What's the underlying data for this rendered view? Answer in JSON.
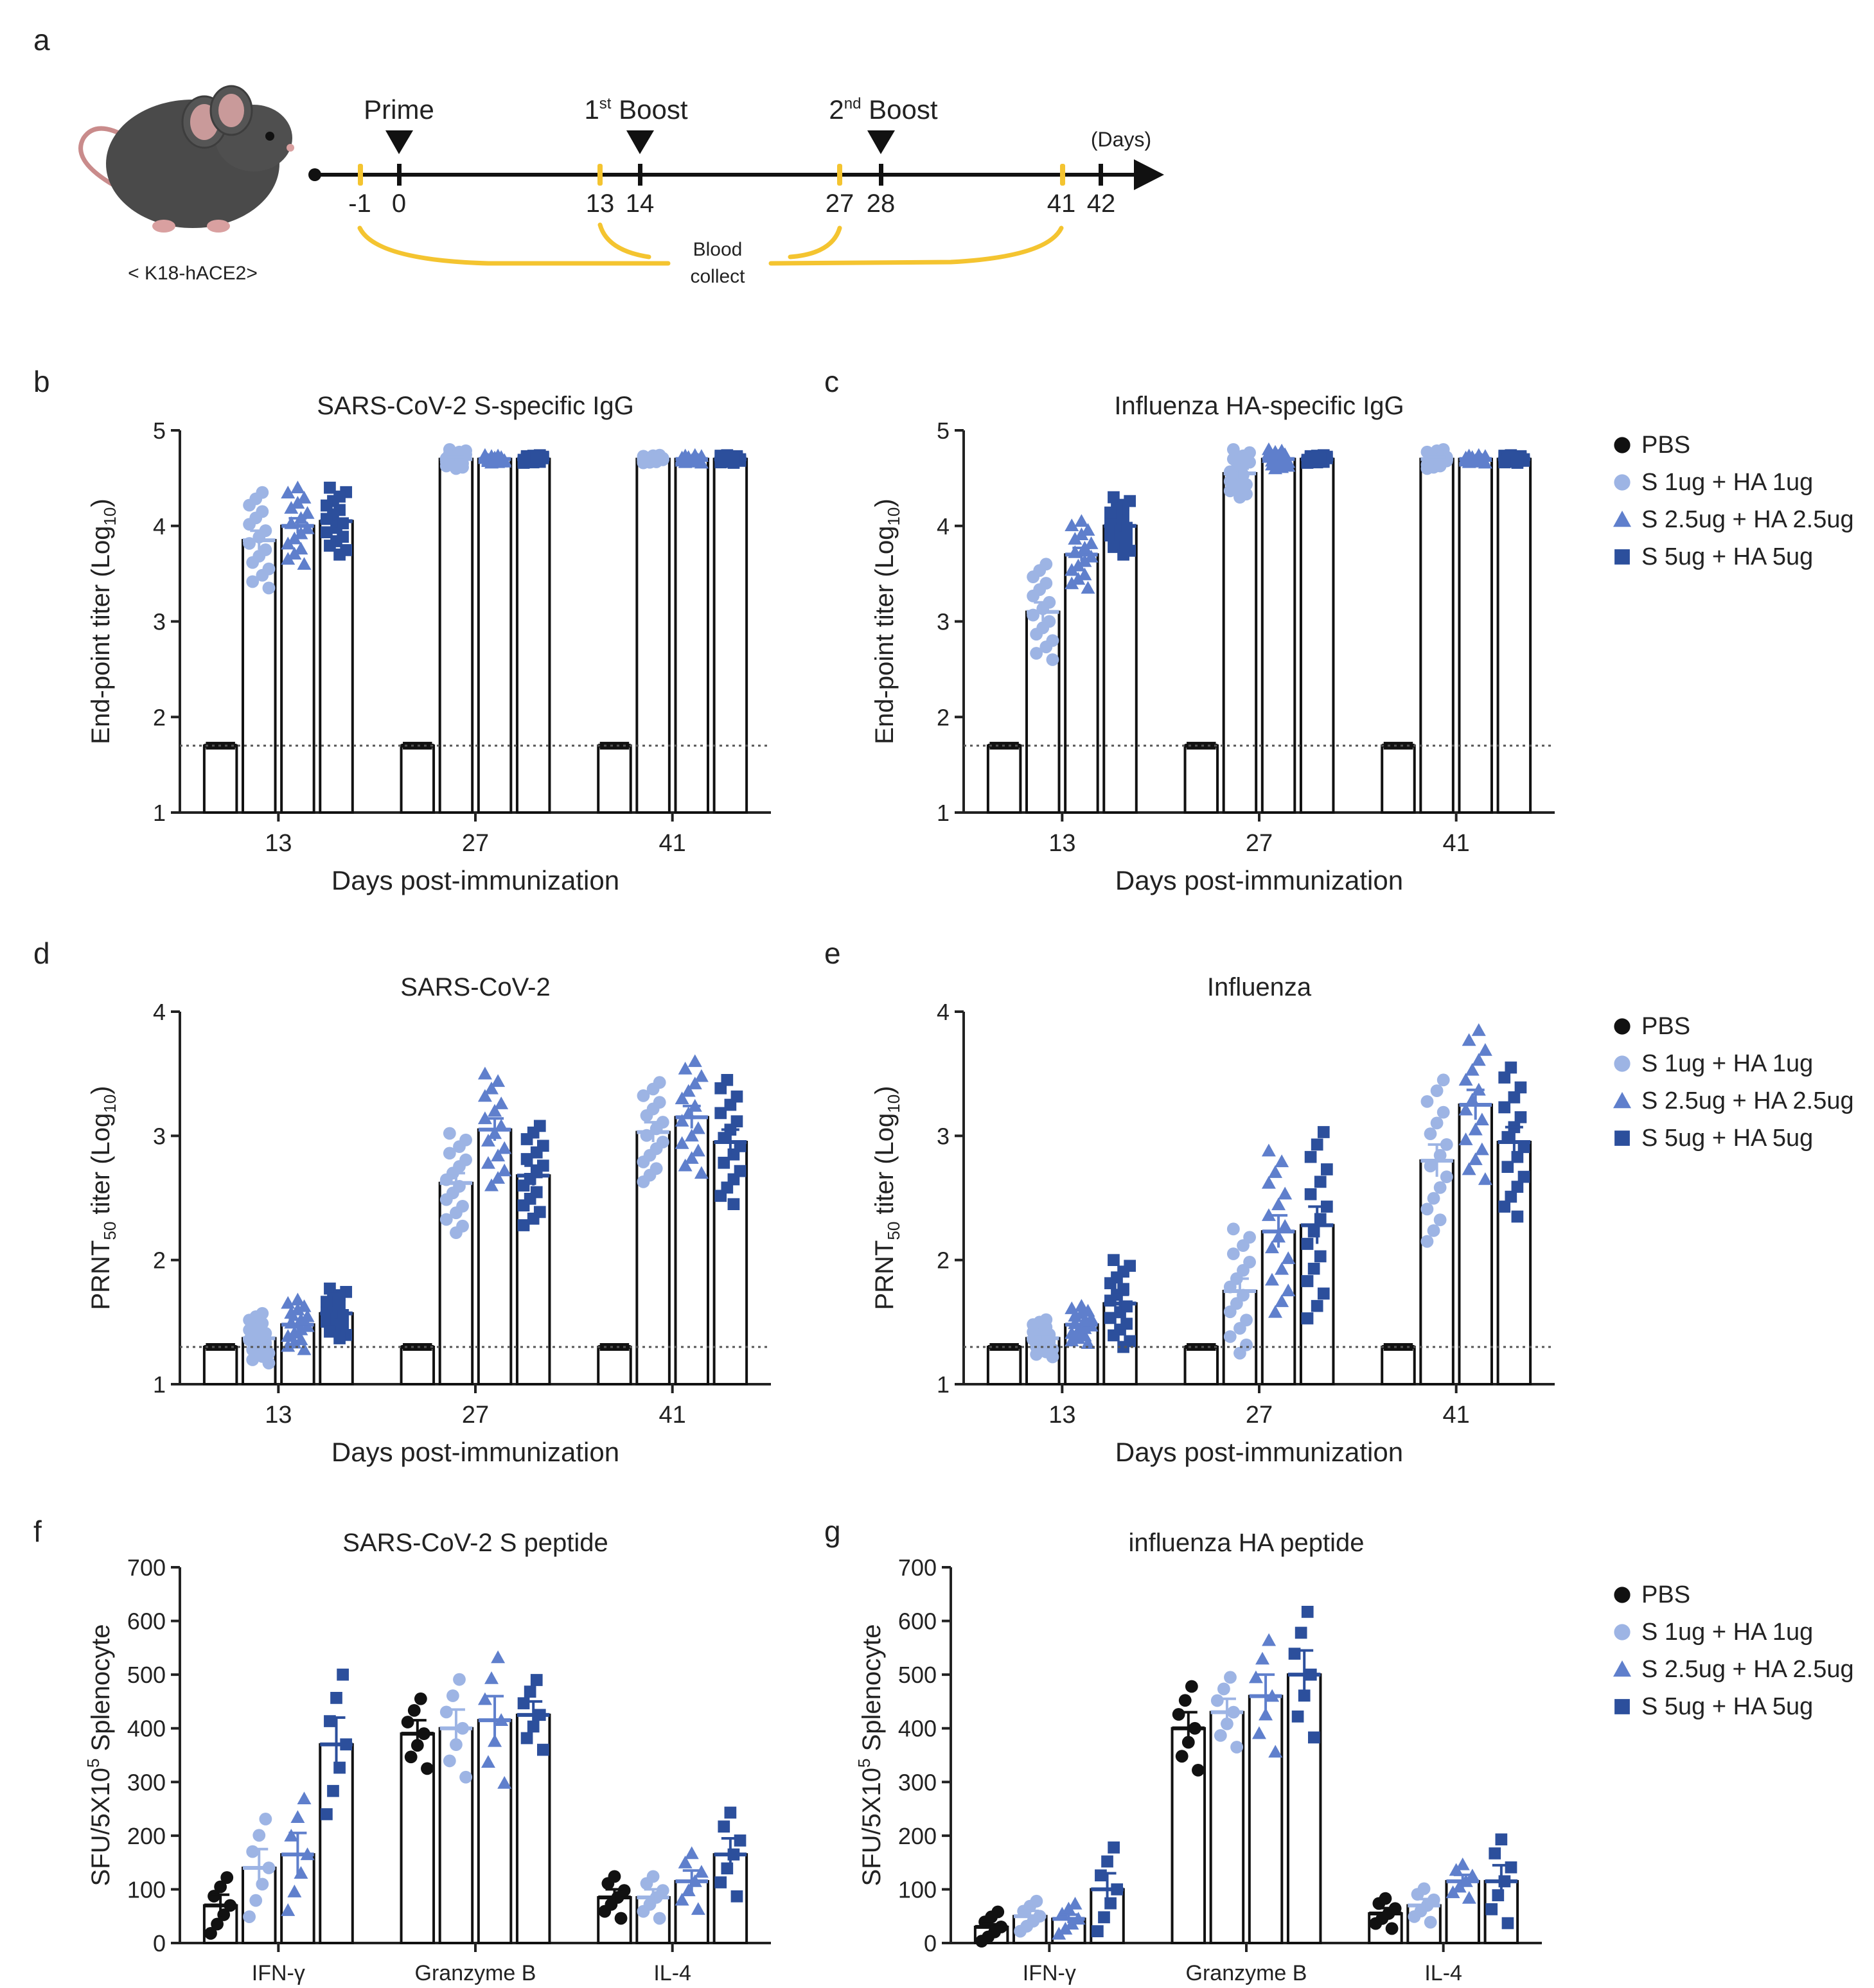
{
  "colors": {
    "pbs": "#111111",
    "s1": "#9DB4E4",
    "s25": "#5F7FCC",
    "s5": "#2C4F9C",
    "timeline_accent": "#F4C430"
  },
  "legend": {
    "title_markers": [
      "circle",
      "circle",
      "triangle",
      "square"
    ],
    "items": [
      "PBS",
      "S 1ug + HA 1ug",
      "S 2.5ug + HA 2.5ug",
      "S 5ug + HA 5ug"
    ]
  },
  "panel_a": {
    "letter": "a",
    "mouse_label": "< K18-hACE2>",
    "prime_label": "Prime",
    "boost1_base": "1",
    "boost1_sup": "st",
    "boost1_rest": " Boost",
    "boost2_base": "2",
    "boost2_sup": "nd",
    "boost2_rest": " Boost",
    "days_unit": "(Days)",
    "tick_labels": [
      "-1",
      "0",
      "13",
      "14",
      "27",
      "28",
      "41",
      "42"
    ],
    "blood_label_1": "Blood",
    "blood_label_2": "collect"
  },
  "chart_data": [
    {
      "panel": "b",
      "type": "bar",
      "title": "SARS-CoV-2 S-specific IgG",
      "ylabel_main": "End-point titer (Log",
      "ylabel_sub": "10",
      "ylabel_end": ")",
      "xlabel": "Days post-immunization",
      "ylim": [
        1,
        5
      ],
      "yticks": [
        "1",
        "2",
        "3",
        "4",
        "5"
      ],
      "categories": [
        "13",
        "27",
        "41"
      ],
      "detection_limit": 1.7,
      "series": [
        {
          "name": "PBS",
          "values": [
            1.7,
            1.7,
            1.7
          ],
          "sem": [
            0,
            0,
            0
          ]
        },
        {
          "name": "S 1ug + HA 1ug",
          "values": [
            3.85,
            4.7,
            4.7
          ],
          "sem": [
            0.1,
            0.02,
            0
          ]
        },
        {
          "name": "S 2.5ug + HA 2.5ug",
          "values": [
            4.0,
            4.7,
            4.7
          ],
          "sem": [
            0.08,
            0,
            0
          ]
        },
        {
          "name": "S 5ug + HA 5ug",
          "values": [
            4.05,
            4.7,
            4.7
          ],
          "sem": [
            0.07,
            0,
            0
          ]
        }
      ]
    },
    {
      "panel": "c",
      "type": "bar",
      "title": "Influenza HA-specific IgG",
      "ylabel_main": "End-point titer (Log",
      "ylabel_sub": "10",
      "ylabel_end": ")",
      "xlabel": "Days post-immunization",
      "ylim": [
        1,
        5
      ],
      "yticks": [
        "1",
        "2",
        "3",
        "4",
        "5"
      ],
      "categories": [
        "13",
        "27",
        "41"
      ],
      "detection_limit": 1.7,
      "series": [
        {
          "name": "PBS",
          "values": [
            1.7,
            1.7,
            1.7
          ],
          "sem": [
            0,
            0,
            0
          ]
        },
        {
          "name": "S 1ug + HA 1ug",
          "values": [
            3.1,
            4.55,
            4.7
          ],
          "sem": [
            0.1,
            0.05,
            0.02
          ]
        },
        {
          "name": "S 2.5ug + HA 2.5ug",
          "values": [
            3.7,
            4.7,
            4.7
          ],
          "sem": [
            0.07,
            0.02,
            0
          ]
        },
        {
          "name": "S 5ug + HA 5ug",
          "values": [
            4.0,
            4.7,
            4.7
          ],
          "sem": [
            0.06,
            0,
            0
          ]
        }
      ]
    },
    {
      "panel": "d",
      "type": "bar",
      "title": "SARS-CoV-2",
      "ylabel_main": "PRNT",
      "ylabel_sub": "50",
      "ylabel_end": "  titer (Log",
      "ylabel_sub2": "10",
      "ylabel_end2": ")",
      "xlabel": "Days post-immunization",
      "ylim": [
        1,
        4
      ],
      "yticks": [
        "1",
        "2",
        "3",
        "4"
      ],
      "categories": [
        "13",
        "27",
        "41"
      ],
      "detection_limit": 1.3,
      "series": [
        {
          "name": "PBS",
          "values": [
            1.3,
            1.3,
            1.3
          ],
          "sem": [
            0,
            0,
            0
          ]
        },
        {
          "name": "S 1ug + HA 1ug",
          "values": [
            1.37,
            2.62,
            3.03
          ],
          "sem": [
            0.04,
            0.08,
            0.08
          ]
        },
        {
          "name": "S 2.5ug + HA 2.5ug",
          "values": [
            1.48,
            3.05,
            3.15
          ],
          "sem": [
            0.04,
            0.09,
            0.09
          ]
        },
        {
          "name": "S 5ug + HA 5ug",
          "values": [
            1.57,
            2.68,
            2.95
          ],
          "sem": [
            0.04,
            0.08,
            0.1
          ]
        }
      ]
    },
    {
      "panel": "e",
      "type": "bar",
      "title": "Influenza",
      "ylabel_main": "PRNT",
      "ylabel_sub": "50",
      "ylabel_end": "  titer (Log",
      "ylabel_sub2": "10",
      "ylabel_end2": ")",
      "xlabel": "Days post-immunization",
      "ylim": [
        1,
        4
      ],
      "yticks": [
        "1",
        "2",
        "3",
        "4"
      ],
      "categories": [
        "13",
        "27",
        "41"
      ],
      "detection_limit": 1.3,
      "series": [
        {
          "name": "PBS",
          "values": [
            1.3,
            1.3,
            1.3
          ],
          "sem": [
            0,
            0,
            0
          ]
        },
        {
          "name": "S 1ug + HA 1ug",
          "values": [
            1.37,
            1.75,
            2.8
          ],
          "sem": [
            0.03,
            0.1,
            0.13
          ]
        },
        {
          "name": "S 2.5ug + HA 2.5ug",
          "values": [
            1.48,
            2.23,
            3.25
          ],
          "sem": [
            0.03,
            0.13,
            0.12
          ]
        },
        {
          "name": "S 5ug + HA 5ug",
          "values": [
            1.65,
            2.28,
            2.95
          ],
          "sem": [
            0.07,
            0.15,
            0.12
          ]
        }
      ]
    },
    {
      "panel": "f",
      "type": "bar",
      "title": "SARS-CoV-2 S peptide",
      "ylabel_main": "SFU/5X10",
      "ylabel_sup": "5",
      "ylabel_end": " Splenocyte",
      "xlabel": "",
      "ylim": [
        0,
        700
      ],
      "yticks": [
        "0",
        "100",
        "200",
        "300",
        "400",
        "500",
        "600",
        "700"
      ],
      "categories": [
        "IFN-γ",
        "Granzyme B",
        "IL-4"
      ],
      "detection_limit": null,
      "series": [
        {
          "name": "PBS",
          "values": [
            70,
            390,
            85
          ],
          "sem": [
            20,
            25,
            15
          ]
        },
        {
          "name": "S 1ug + HA 1ug",
          "values": [
            140,
            400,
            85
          ],
          "sem": [
            35,
            35,
            15
          ]
        },
        {
          "name": "S 2.5ug + HA 2.5ug",
          "values": [
            165,
            415,
            115
          ],
          "sem": [
            40,
            45,
            20
          ]
        },
        {
          "name": "S 5ug + HA 5ug",
          "values": [
            370,
            425,
            165
          ],
          "sem": [
            50,
            25,
            30
          ]
        }
      ]
    },
    {
      "panel": "g",
      "type": "bar",
      "title": "influenza HA peptide",
      "ylabel_main": "SFU/5X10",
      "ylabel_sup": "5",
      "ylabel_end": " Splenocyte",
      "xlabel": "",
      "ylim": [
        0,
        700
      ],
      "yticks": [
        "0",
        "100",
        "200",
        "300",
        "400",
        "500",
        "600",
        "700"
      ],
      "categories": [
        "IFN-γ",
        "Granzyme B",
        "IL-4"
      ],
      "detection_limit": null,
      "series": [
        {
          "name": "PBS",
          "values": [
            30,
            400,
            55
          ],
          "sem": [
            5,
            30,
            10
          ]
        },
        {
          "name": "S 1ug + HA 1ug",
          "values": [
            50,
            430,
            70
          ],
          "sem": [
            10,
            25,
            12
          ]
        },
        {
          "name": "S 2.5ug + HA 2.5ug",
          "values": [
            45,
            460,
            115
          ],
          "sem": [
            8,
            40,
            12
          ]
        },
        {
          "name": "S 5ug + HA 5ug",
          "values": [
            100,
            500,
            115
          ],
          "sem": [
            30,
            45,
            30
          ]
        }
      ]
    }
  ]
}
